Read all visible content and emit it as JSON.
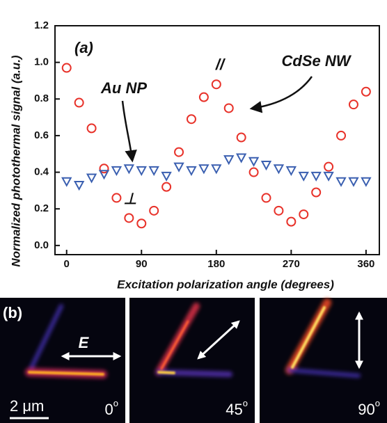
{
  "chart_data": {
    "type": "scatter",
    "xlabel": "Excitation polarization angle (degrees)",
    "ylabel": "Normalized photothermal signal (a.u.)",
    "x": [
      0,
      15,
      30,
      45,
      60,
      75,
      90,
      105,
      120,
      135,
      150,
      165,
      180,
      195,
      210,
      225,
      240,
      255,
      270,
      285,
      300,
      315,
      330,
      345,
      360
    ],
    "series": [
      {
        "name": "CdSe NW",
        "color": "#e8322a",
        "marker": "circle",
        "values": [
          0.97,
          0.78,
          0.64,
          0.42,
          0.26,
          0.15,
          0.12,
          0.19,
          0.32,
          0.51,
          0.69,
          0.81,
          0.88,
          0.75,
          0.59,
          0.4,
          0.26,
          0.19,
          0.13,
          0.17,
          0.29,
          0.43,
          0.6,
          0.77,
          0.84
        ]
      },
      {
        "name": "Au NP",
        "color": "#3a5fb0",
        "marker": "triangle-down",
        "values": [
          0.35,
          0.33,
          0.37,
          0.39,
          0.41,
          0.42,
          0.41,
          0.41,
          0.38,
          0.43,
          0.41,
          0.42,
          0.42,
          0.47,
          0.48,
          0.46,
          0.44,
          0.42,
          0.41,
          0.38,
          0.38,
          0.38,
          0.35,
          0.35,
          0.35
        ]
      }
    ],
    "xlim": [
      -14,
      376
    ],
    "ylim": [
      -0.05,
      1.2
    ],
    "xticks": [
      0,
      90,
      180,
      270,
      360
    ],
    "yticks": [
      {
        "value": 0,
        "label": "0.0"
      },
      0.2,
      0.4,
      0.6,
      0.8,
      {
        "value": 1,
        "label": "1.0"
      },
      1.2
    ],
    "annotations": [
      "(a)",
      "//",
      "⊥"
    ]
  },
  "panel_b": {
    "label": "(b)",
    "field_label": "E",
    "scale_bar": "2 μm",
    "panels": [
      {
        "angle": "0",
        "sup": "o"
      },
      {
        "angle": "45",
        "sup": "o"
      },
      {
        "angle": "90",
        "sup": "o"
      }
    ]
  }
}
